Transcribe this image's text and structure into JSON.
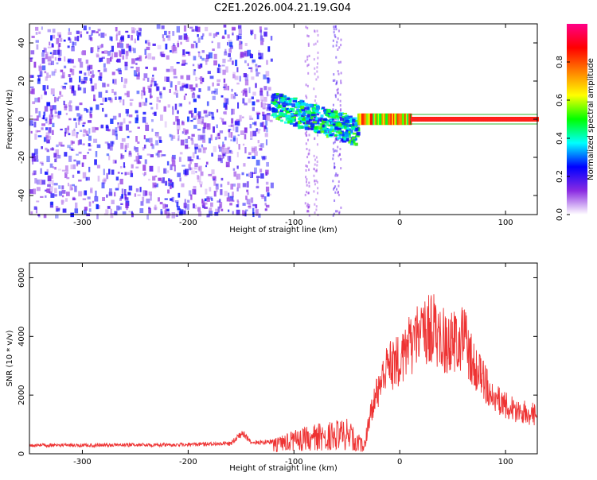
{
  "title": "C2E1.2026.004.21.19.G04",
  "chart_data": [
    {
      "type": "heatmap",
      "xlabel": "Height of straight line (km)",
      "ylabel": "Frequency (Hz)",
      "xlim": [
        -350,
        130
      ],
      "ylim": [
        -50,
        50
      ],
      "xticks": [
        -300,
        -200,
        -100,
        0,
        100
      ],
      "yticks": [
        -40,
        -20,
        0,
        20,
        40
      ],
      "colorbar": {
        "label": "Normalized spectral amplitude",
        "range": [
          0,
          1
        ],
        "ticks": [
          "0.0",
          "0.2",
          "0.4",
          "0.6",
          "0.8"
        ],
        "colors": [
          "#ffffff",
          "#8a2be2",
          "#0000ff",
          "#00ffff",
          "#00ff00",
          "#ffff00",
          "#ff8000",
          "#ff0000",
          "#ff0088"
        ]
      },
      "regions": [
        {
          "x_range": [
            -350,
            -122
          ],
          "description_level": 0.15,
          "kind": "noise"
        },
        {
          "x_range": [
            -122,
            -40
          ],
          "center_freq": [
            8,
            -10
          ],
          "level": 0.35,
          "kind": "signal-onset"
        },
        {
          "x_range": [
            -40,
            130
          ],
          "center_freq": [
            0,
            0
          ],
          "level": 0.9,
          "kind": "steady-signal"
        }
      ]
    },
    {
      "type": "line",
      "xlabel": "Height of straight line (km)",
      "ylabel": "SNR (10 * v/v)",
      "xlim": [
        -350,
        130
      ],
      "ylim": [
        0,
        6500
      ],
      "xticks": [
        -300,
        -200,
        -100,
        0,
        100
      ],
      "yticks": [
        0,
        2000,
        4000,
        6000
      ],
      "series_color": "#ee3333",
      "envelope": [
        {
          "x": -350,
          "y": 350
        },
        {
          "x": -300,
          "y": 350
        },
        {
          "x": -200,
          "y": 380
        },
        {
          "x": -160,
          "y": 420
        },
        {
          "x": -148,
          "y": 900
        },
        {
          "x": -140,
          "y": 450
        },
        {
          "x": -120,
          "y": 500
        },
        {
          "x": -100,
          "y": 800
        },
        {
          "x": -70,
          "y": 1100
        },
        {
          "x": -50,
          "y": 1200
        },
        {
          "x": -35,
          "y": 500
        },
        {
          "x": -25,
          "y": 2200
        },
        {
          "x": -15,
          "y": 3600
        },
        {
          "x": 0,
          "y": 4200
        },
        {
          "x": 20,
          "y": 5400
        },
        {
          "x": 30,
          "y": 5600
        },
        {
          "x": 45,
          "y": 4800
        },
        {
          "x": 60,
          "y": 5200
        },
        {
          "x": 70,
          "y": 3800
        },
        {
          "x": 90,
          "y": 2400
        },
        {
          "x": 110,
          "y": 1900
        },
        {
          "x": 130,
          "y": 1700
        }
      ]
    }
  ]
}
